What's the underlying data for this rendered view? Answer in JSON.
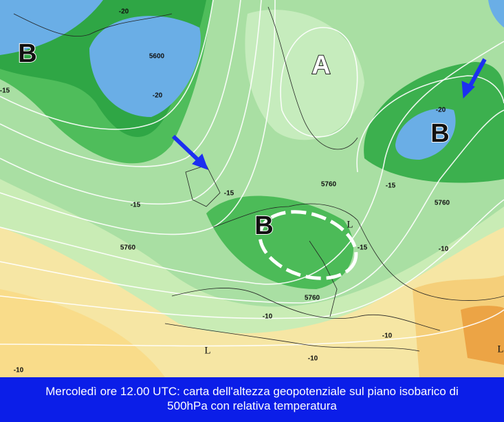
{
  "map_labels": [
    "B",
    "A",
    "B",
    "B",
    "L",
    "L",
    "L"
  ],
  "contour_labels": [
    "5600",
    "5760",
    "5760",
    "5760",
    "5760",
    "-20",
    "-20",
    "-20",
    "-15",
    "-15",
    "-15",
    "-15",
    "-15",
    "-10",
    "-10",
    "-10",
    "-10",
    "-10"
  ],
  "caption": [
    "Mercoledì ore 12.00 UTC: carta dell'altezza geopotenziale sul piano isobarico di",
    "500hPa con relativa temperatura"
  ]
}
